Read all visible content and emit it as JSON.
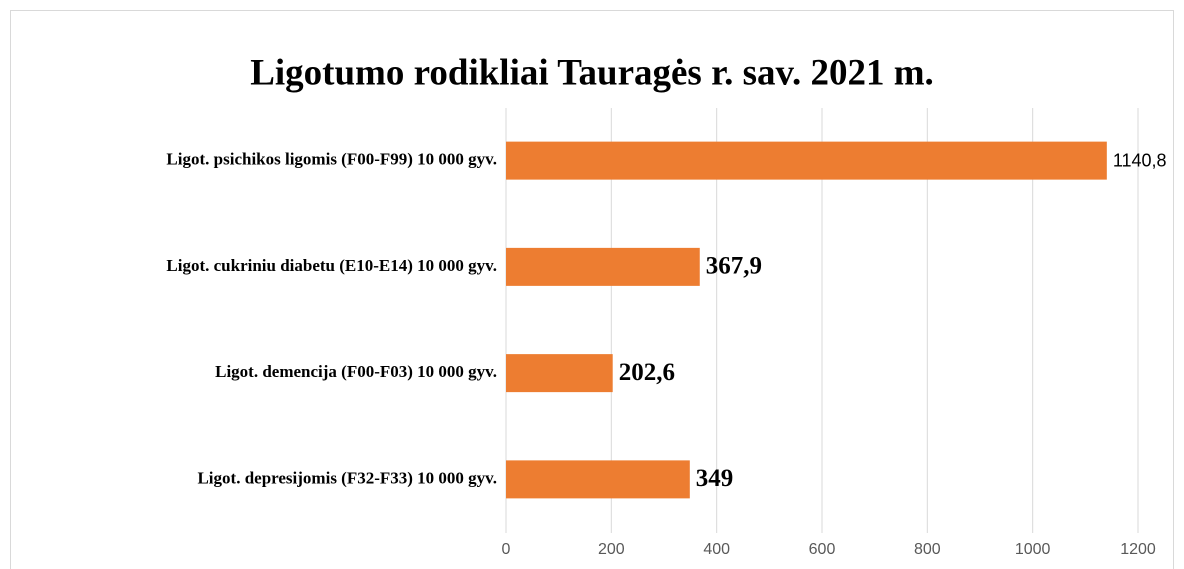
{
  "chart_data": {
    "type": "hbar",
    "title": "Ligotumo rodikliai Tauragės r. sav. 2021 m.",
    "categories": [
      "Ligot. psichikos ligomis (F00-F99) 10 000 gyv.",
      "Ligot. cukriniu diabetu (E10-E14) 10 000 gyv.",
      "Ligot. demencija (F00-F03) 10 000 gyv.",
      "Ligot. depresijomis (F32-F33) 10 000 gyv."
    ],
    "values": [
      1140.8,
      367.9,
      202.6,
      349
    ],
    "value_labels": [
      "1140,8",
      "367,9",
      "202,6",
      "349"
    ],
    "color": "#ed7d31",
    "xlim": [
      0,
      1200
    ],
    "xticks": [
      0,
      200,
      400,
      600,
      800,
      1000,
      1200
    ],
    "grid": true
  }
}
